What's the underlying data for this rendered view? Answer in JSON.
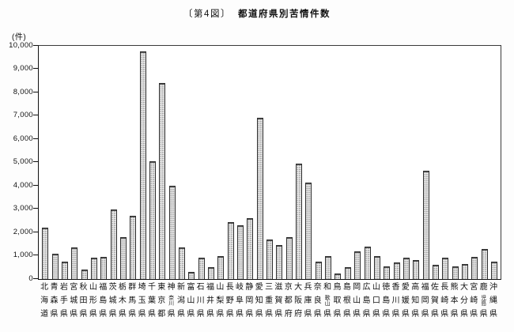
{
  "title": {
    "prefix": "〔第4図〕",
    "text": "都道府県別苦情件数"
  },
  "axis": {
    "unit_label": "(件)",
    "yticks": [
      "10,000",
      "9,000",
      "8,000",
      "7,000",
      "6,000",
      "5,000",
      "4,000",
      "3,000",
      "2,000",
      "1,000",
      "0"
    ]
  },
  "colors": {
    "bar_fill": "#ececec",
    "bar_dot": "#989898",
    "bar_border": "#2e2e2e",
    "frame": "#3a3a3a",
    "text": "#111111"
  },
  "chart_data": {
    "type": "bar",
    "title": "〔第4図〕 都道府県別苦情件数",
    "xlabel": "",
    "ylabel": "(件)",
    "ylim": [
      0,
      10000
    ],
    "ytick_interval": 1000,
    "grid": false,
    "legend": "none",
    "categories": [
      "北海道",
      "青森県",
      "岩手県",
      "宮城県",
      "秋田県",
      "山形県",
      "福島県",
      "茨城県",
      "栃木県",
      "群馬県",
      "埼玉県",
      "千葉県",
      "東京都",
      "神奈川県",
      "新潟県",
      "富山県",
      "石川県",
      "福井県",
      "山梨県",
      "長野県",
      "岐阜県",
      "静岡県",
      "愛知県",
      "三重県",
      "滋賀県",
      "京都府",
      "大阪府",
      "兵庫県",
      "奈良県",
      "和歌山県",
      "鳥取県",
      "島根県",
      "岡山県",
      "広島県",
      "山口県",
      "徳島県",
      "香川県",
      "愛媛県",
      "高知県",
      "福岡県",
      "佐賀県",
      "長崎県",
      "熊本県",
      "大分県",
      "宮崎県",
      "鹿児島県",
      "沖縄県"
    ],
    "values": [
      2200,
      1100,
      750,
      1350,
      400,
      900,
      950,
      3000,
      1800,
      2700,
      9750,
      5050,
      8400,
      4000,
      1350,
      300,
      900,
      500,
      1000,
      2450,
      2300,
      2600,
      6900,
      1700,
      1450,
      1800,
      4950,
      4150,
      750,
      1000,
      250,
      500,
      1200,
      1400,
      1000,
      550,
      700,
      900,
      800,
      4650,
      600,
      900,
      550,
      650,
      950,
      1300,
      750
    ]
  }
}
